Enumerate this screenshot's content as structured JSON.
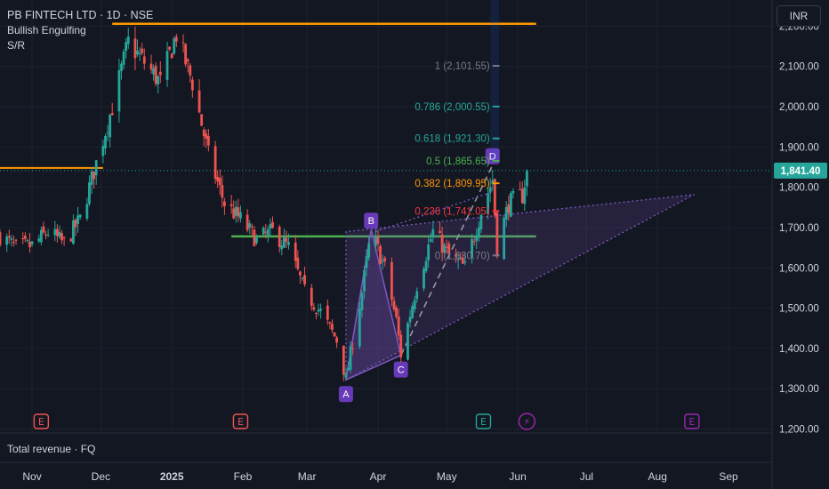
{
  "header": {
    "title": "PB FINTECH LTD · 1D · NSE",
    "indicator_1": "Bullish Engulfing",
    "indicator_2": "S/R"
  },
  "currency_button": "INR",
  "lower_pane_label": "Total revenue · FQ",
  "colors": {
    "background": "#131722",
    "grid": "#1e222d",
    "text": "#d1d4dc",
    "up": "#26a69a",
    "down": "#ef5350",
    "support": "#4caf50",
    "resistance": "#ff9800",
    "pattern": "#7e57c2"
  },
  "chart_data": {
    "type": "candlestick",
    "y_axis": {
      "ticks": [
        "2,200.00",
        "2,100.00",
        "2,000.00",
        "1,900.00",
        "1,800.00",
        "1,700.00",
        "1,600.00",
        "1,500.00",
        "1,400.00",
        "1,300.00",
        "1,200.00"
      ],
      "tick_values": [
        2200,
        2100,
        2000,
        1900,
        1800,
        1700,
        1600,
        1500,
        1400,
        1300,
        1200
      ],
      "range": [
        1190,
        2265
      ]
    },
    "x_axis": {
      "ticks": [
        "Nov",
        "Dec",
        "2025",
        "Feb",
        "Mar",
        "Apr",
        "May",
        "Jun",
        "Jul",
        "Aug",
        "Sep"
      ],
      "bold_ticks": [
        "2025"
      ],
      "tick_dates": [
        "2024-11-01",
        "2024-12-01",
        "2025-01-01",
        "2025-02-01",
        "2025-03-01",
        "2025-04-01",
        "2025-05-01",
        "2025-06-01",
        "2025-07-01",
        "2025-08-01",
        "2025-09-01"
      ],
      "range": [
        "2024-10-18",
        "2025-09-20"
      ]
    },
    "last_price": {
      "value": 1841.4,
      "label": "1,841.40"
    },
    "closes": [
      {
        "date": "2024-10-18",
        "close": 1680
      },
      {
        "date": "2024-10-25",
        "close": 1650
      },
      {
        "date": "2024-11-01",
        "close": 1655
      },
      {
        "date": "2024-11-08",
        "close": 1690
      },
      {
        "date": "2024-11-15",
        "close": 1660
      },
      {
        "date": "2024-11-22",
        "close": 1720
      },
      {
        "date": "2024-11-29",
        "close": 1860
      },
      {
        "date": "2024-12-06",
        "close": 2000
      },
      {
        "date": "2024-12-13",
        "close": 2160
      },
      {
        "date": "2024-12-20",
        "close": 2110
      },
      {
        "date": "2024-12-27",
        "close": 2060
      },
      {
        "date": "2025-01-03",
        "close": 2180
      },
      {
        "date": "2025-01-10",
        "close": 2060
      },
      {
        "date": "2025-01-17",
        "close": 1880
      },
      {
        "date": "2025-01-24",
        "close": 1760
      },
      {
        "date": "2025-01-31",
        "close": 1720
      },
      {
        "date": "2025-02-07",
        "close": 1670
      },
      {
        "date": "2025-02-14",
        "close": 1690
      },
      {
        "date": "2025-02-21",
        "close": 1650
      },
      {
        "date": "2025-02-28",
        "close": 1540
      },
      {
        "date": "2025-03-07",
        "close": 1490
      },
      {
        "date": "2025-03-14",
        "close": 1420
      },
      {
        "date": "2025-03-18",
        "close": 1325
      },
      {
        "date": "2025-03-25",
        "close": 1540
      },
      {
        "date": "2025-03-29",
        "close": 1690
      },
      {
        "date": "2025-04-04",
        "close": 1600
      },
      {
        "date": "2025-04-09",
        "close": 1470
      },
      {
        "date": "2025-04-11",
        "close": 1385
      },
      {
        "date": "2025-04-18",
        "close": 1560
      },
      {
        "date": "2025-04-25",
        "close": 1690
      },
      {
        "date": "2025-05-02",
        "close": 1630
      },
      {
        "date": "2025-05-09",
        "close": 1600
      },
      {
        "date": "2025-05-16",
        "close": 1740
      },
      {
        "date": "2025-05-21",
        "close": 1820
      },
      {
        "date": "2025-05-23",
        "close": 1650
      },
      {
        "date": "2025-05-28",
        "close": 1760
      },
      {
        "date": "2025-06-03",
        "close": 1780
      },
      {
        "date": "2025-06-05",
        "close": 1841.4
      }
    ],
    "support_line": {
      "value": 1678
    },
    "resistance_line": {
      "value": 2206
    },
    "left_level": {
      "value": 1848
    },
    "fibonacci": [
      {
        "label": "1 (2,101.55)",
        "value": 2101.55,
        "color": "#787b86"
      },
      {
        "label": "0.786 (2,000.55)",
        "value": 2000.55,
        "color": "#26a69a"
      },
      {
        "label": "0.618 (1,921.30)",
        "value": 1921.3,
        "color": "#26a69a"
      },
      {
        "label": "0.5 (1,865.65)",
        "value": 1865.65,
        "color": "#4caf50"
      },
      {
        "label": "0.382 (1,809.95)",
        "value": 1809.95,
        "color": "#ff9800"
      },
      {
        "label": "0.236 (1,741.05)",
        "value": 1741.05,
        "color": "#f23645"
      },
      {
        "label": "0 (1,630.70)",
        "value": 1630.7,
        "color": "#787b86"
      }
    ],
    "abcd_pattern": [
      {
        "label": "A",
        "date": "2025-03-18",
        "value": 1322
      },
      {
        "label": "B",
        "date": "2025-03-29",
        "value": 1695
      },
      {
        "label": "C",
        "date": "2025-04-11",
        "value": 1383
      },
      {
        "label": "D",
        "date": "2025-05-21",
        "value": 1855
      }
    ],
    "triangle": [
      {
        "date": "2025-03-18",
        "value": 1322
      },
      {
        "date": "2025-03-18",
        "value": 1690
      },
      {
        "date": "2025-08-17",
        "value": 1782
      }
    ],
    "earnings_markers": [
      {
        "date": "2024-11-05",
        "label": "E",
        "kind": "past"
      },
      {
        "date": "2025-01-31",
        "label": "E",
        "kind": "past"
      },
      {
        "date": "2025-05-17",
        "label": "E",
        "kind": "recent"
      },
      {
        "date": "2025-06-05",
        "label": "⚡",
        "kind": "event"
      },
      {
        "date": "2025-08-16",
        "label": "E",
        "kind": "future"
      }
    ]
  }
}
